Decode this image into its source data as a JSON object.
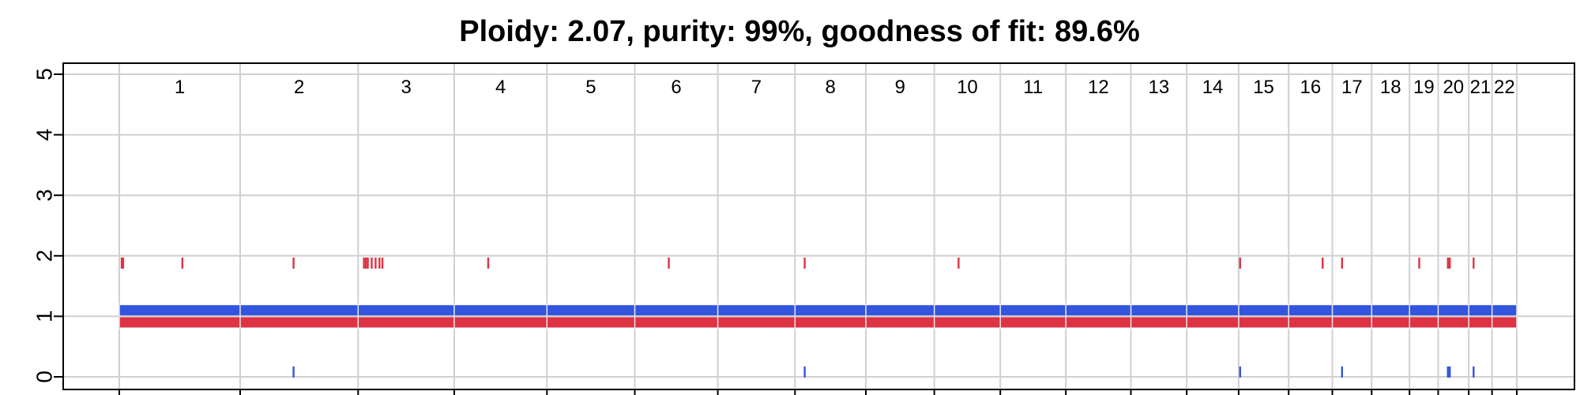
{
  "chart_data": {
    "type": "copy-number-segments",
    "title": "Ploidy: 2.07, purity: 99%, goodness of fit: 89.6%",
    "xlabel": "",
    "ylabel": "",
    "ylim": [
      0,
      5
    ],
    "y_ticks": [
      "0",
      "1",
      "2",
      "3",
      "4",
      "5"
    ],
    "grid": true,
    "colors": {
      "major_allele": "#3355dd",
      "minor_allele": "#dd3344",
      "grid": "#d0d0d0",
      "frame": "#000000"
    },
    "chromosomes": [
      {
        "label": "1",
        "length": 249
      },
      {
        "label": "2",
        "length": 243
      },
      {
        "label": "3",
        "length": 198
      },
      {
        "label": "4",
        "length": 191
      },
      {
        "label": "5",
        "length": 181
      },
      {
        "label": "6",
        "length": 171
      },
      {
        "label": "7",
        "length": 159
      },
      {
        "label": "8",
        "length": 146
      },
      {
        "label": "9",
        "length": 141
      },
      {
        "label": "10",
        "length": 136
      },
      {
        "label": "11",
        "length": 135
      },
      {
        "label": "12",
        "length": 134
      },
      {
        "label": "13",
        "length": 115
      },
      {
        "label": "14",
        "length": 107
      },
      {
        "label": "15",
        "length": 103
      },
      {
        "label": "16",
        "length": 90
      },
      {
        "label": "17",
        "length": 81
      },
      {
        "label": "18",
        "length": 78
      },
      {
        "label": "19",
        "length": 59
      },
      {
        "label": "20",
        "length": 63
      },
      {
        "label": "21",
        "length": 48
      },
      {
        "label": "22",
        "length": 51
      }
    ],
    "series": [
      {
        "name": "",
        "value": 1.1,
        "color": "#3355dd"
      },
      {
        "name": "",
        "value": 0.9,
        "color": "#dd3344"
      }
    ],
    "outliers_high": [
      {
        "chr": "1",
        "pos": 5
      },
      {
        "chr": "1",
        "pos": 8
      },
      {
        "chr": "1",
        "pos": 130
      },
      {
        "chr": "2",
        "pos": 110
      },
      {
        "chr": "3",
        "pos": 12
      },
      {
        "chr": "3",
        "pos": 16
      },
      {
        "chr": "3",
        "pos": 20
      },
      {
        "chr": "3",
        "pos": 28
      },
      {
        "chr": "3",
        "pos": 36
      },
      {
        "chr": "3",
        "pos": 44
      },
      {
        "chr": "3",
        "pos": 50
      },
      {
        "chr": "4",
        "pos": 70
      },
      {
        "chr": "6",
        "pos": 70
      },
      {
        "chr": "8",
        "pos": 20
      },
      {
        "chr": "10",
        "pos": 50
      },
      {
        "chr": "15",
        "pos": 3
      },
      {
        "chr": "16",
        "pos": 70
      },
      {
        "chr": "17",
        "pos": 20
      },
      {
        "chr": "19",
        "pos": 20
      },
      {
        "chr": "20",
        "pos": 20
      },
      {
        "chr": "20",
        "pos": 24
      },
      {
        "chr": "21",
        "pos": 10
      }
    ],
    "outliers_low": [
      {
        "chr": "2",
        "pos": 110
      },
      {
        "chr": "8",
        "pos": 20
      },
      {
        "chr": "15",
        "pos": 3
      },
      {
        "chr": "17",
        "pos": 20
      },
      {
        "chr": "20",
        "pos": 20
      },
      {
        "chr": "20",
        "pos": 24
      },
      {
        "chr": "21",
        "pos": 10
      }
    ]
  }
}
